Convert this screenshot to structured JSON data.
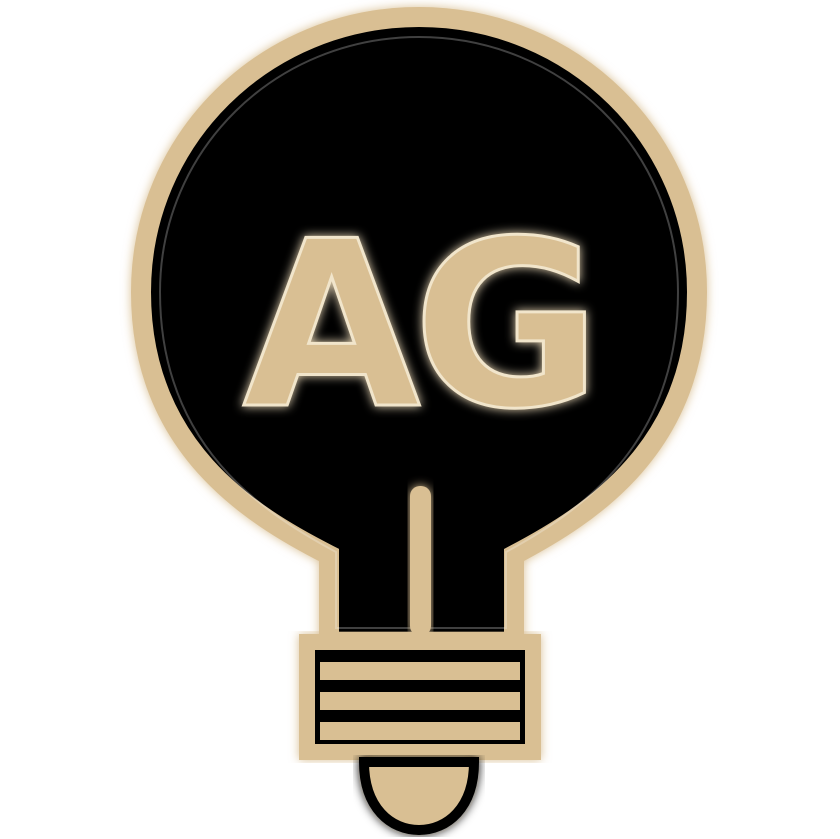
{
  "logo": {
    "monogram": "AG",
    "icon": "lightbulb-icon",
    "colors": {
      "background": "#ffffff",
      "bulb_fill": "#000000",
      "accent": "#d9bf93",
      "glow": "#f1e5cb"
    }
  }
}
